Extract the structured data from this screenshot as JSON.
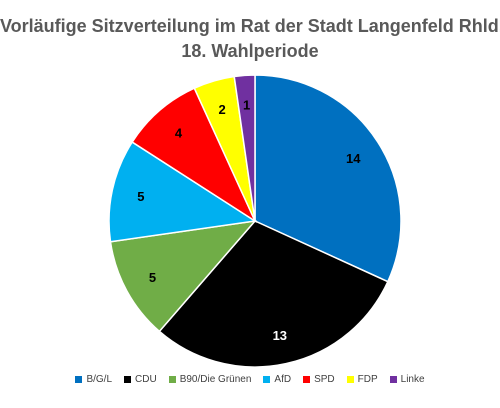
{
  "chart_data": {
    "type": "pie",
    "title_line1": "Vorläufige Sitzverteilung im Rat der Stadt Langenfeld Rhld.",
    "title_line2": "18. Wahlperiode",
    "legend_position": "bottom",
    "slices": [
      {
        "label": "B/G/L",
        "value": 14,
        "color": "#0070C0"
      },
      {
        "label": "CDU",
        "value": 13,
        "color": "#000000"
      },
      {
        "label": "B90/Die Grünen",
        "value": 5,
        "color": "#70AD47"
      },
      {
        "label": "AfD",
        "value": 5,
        "color": "#00B0F0"
      },
      {
        "label": "SPD",
        "value": 4,
        "color": "#FF0000"
      },
      {
        "label": "FDP",
        "value": 2,
        "color": "#FFFF00"
      },
      {
        "label": "Linke",
        "value": 1,
        "color": "#7030A0"
      }
    ]
  }
}
